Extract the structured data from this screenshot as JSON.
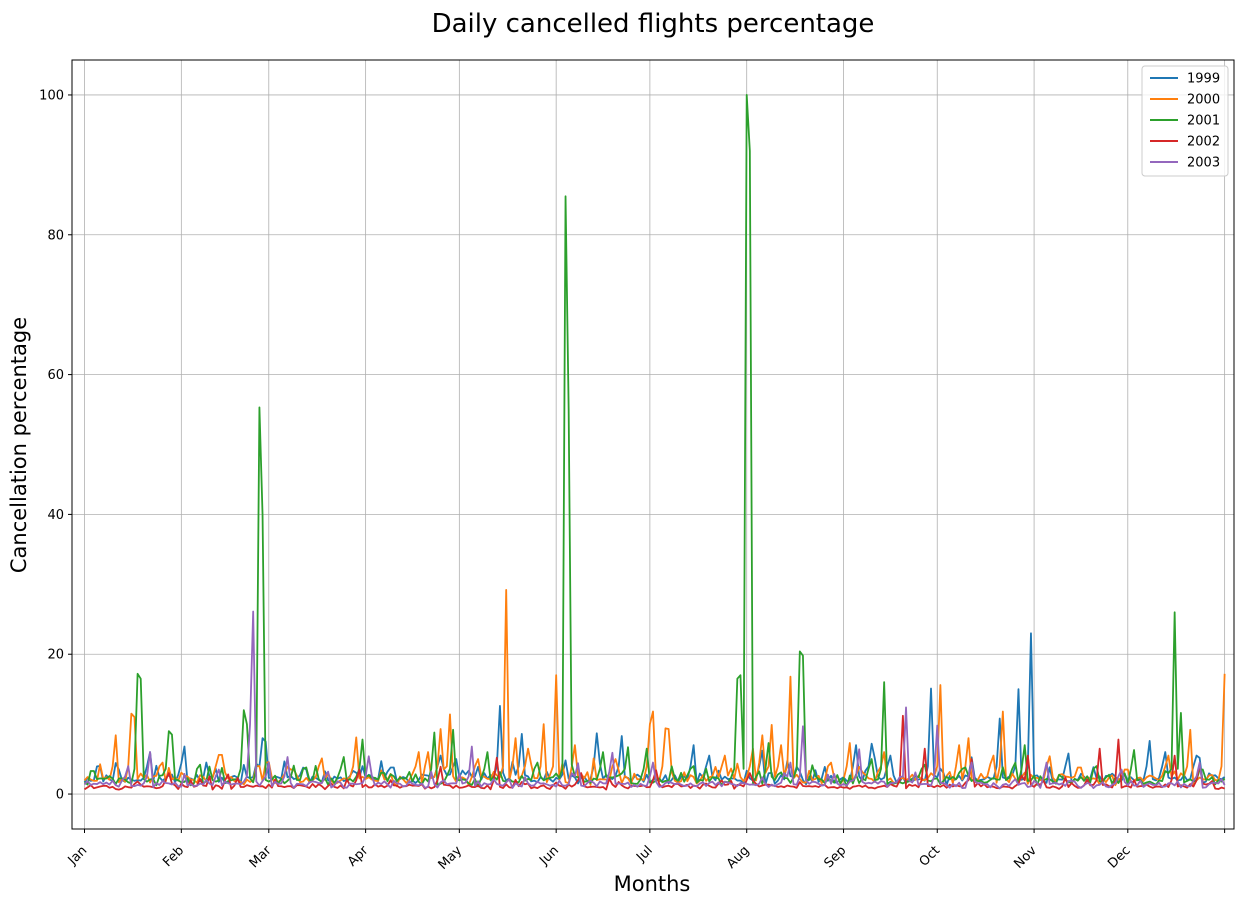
{
  "chart_data": {
    "type": "line",
    "title": "Daily cancelled flights percentage",
    "xlabel": "Months",
    "ylabel": "Cancellation percentage",
    "x_tick_labels": [
      "Jan",
      "Feb",
      "Mar",
      "Apr",
      "May",
      "Jun",
      "Jul",
      "Aug",
      "Sep",
      "Oct",
      "Nov",
      "Dec"
    ],
    "x_tick_days": [
      1,
      32,
      60,
      91,
      121,
      152,
      182,
      213,
      244,
      274,
      305,
      335,
      366
    ],
    "xlim": [
      -3,
      369
    ],
    "ylim": [
      -5,
      105
    ],
    "y_ticks": [
      0,
      20,
      40,
      60,
      80,
      100
    ],
    "grid": true,
    "legend_position": "top-right",
    "series": [
      {
        "name": "1999",
        "color": "#1f77b4",
        "peaks": [
          [
            6,
            4.0
          ],
          [
            12,
            3.5
          ],
          [
            22,
            6.0
          ],
          [
            33,
            6.8
          ],
          [
            58,
            8.0
          ],
          [
            59,
            7.5
          ],
          [
            72,
            3.5
          ],
          [
            100,
            3.8
          ],
          [
            115,
            5.5
          ],
          [
            120,
            5.0
          ],
          [
            134,
            12.6
          ],
          [
            141,
            8.6
          ],
          [
            165,
            8.7
          ],
          [
            173,
            8.3
          ],
          [
            196,
            7.0
          ],
          [
            201,
            5.5
          ],
          [
            218,
            6.2
          ],
          [
            248,
            7.0
          ],
          [
            253,
            7.2
          ],
          [
            259,
            5.5
          ],
          [
            272,
            15.1
          ],
          [
            294,
            10.8
          ],
          [
            300,
            15.0
          ],
          [
            304,
            23.0
          ],
          [
            316,
            5.8
          ],
          [
            342,
            7.6
          ],
          [
            347,
            6.0
          ],
          [
            357,
            5.5
          ]
        ],
        "base": 2.2,
        "seed": 11
      },
      {
        "name": "2000",
        "color": "#ff7f0e",
        "peaks": [
          [
            11,
            8.4
          ],
          [
            16,
            11.5
          ],
          [
            17,
            11.0
          ],
          [
            26,
            4.5
          ],
          [
            44,
            5.6
          ],
          [
            45,
            5.6
          ],
          [
            57,
            4.0
          ],
          [
            68,
            3.5
          ],
          [
            77,
            5.1
          ],
          [
            88,
            8.1
          ],
          [
            108,
            6.0
          ],
          [
            111,
            6.0
          ],
          [
            115,
            9.3
          ],
          [
            118,
            11.4
          ],
          [
            127,
            5.0
          ],
          [
            136,
            29.2
          ],
          [
            139,
            8.0
          ],
          [
            143,
            6.5
          ],
          [
            152,
            17.0
          ],
          [
            148,
            10.0
          ],
          [
            158,
            7.0
          ],
          [
            171,
            5.0
          ],
          [
            182,
            10.0
          ],
          [
            183,
            11.8
          ],
          [
            187,
            9.4
          ],
          [
            188,
            9.3
          ],
          [
            206,
            5.5
          ],
          [
            215,
            6.5
          ],
          [
            218,
            8.4
          ],
          [
            221,
            9.9
          ],
          [
            224,
            7.0
          ],
          [
            227,
            16.8
          ],
          [
            240,
            4.5
          ],
          [
            246,
            7.3
          ],
          [
            257,
            6.0
          ],
          [
            275,
            15.6
          ],
          [
            281,
            7.0
          ],
          [
            284,
            8.0
          ],
          [
            292,
            5.5
          ],
          [
            295,
            11.8
          ],
          [
            310,
            5.4
          ],
          [
            320,
            3.8
          ],
          [
            335,
            3.5
          ],
          [
            348,
            5.5
          ],
          [
            355,
            9.2
          ],
          [
            366,
            17.2
          ]
        ],
        "base": 2.2,
        "seed": 23
      },
      {
        "name": "2001",
        "color": "#2ca02c",
        "peaks": [
          [
            4,
            3.3
          ],
          [
            18,
            17.2
          ],
          [
            19,
            16.5
          ],
          [
            28,
            9.0
          ],
          [
            29,
            8.5
          ],
          [
            38,
            4.2
          ],
          [
            52,
            12.0
          ],
          [
            53,
            10.0
          ],
          [
            57,
            55.3
          ],
          [
            58,
            40.0
          ],
          [
            72,
            3.8
          ],
          [
            84,
            5.3
          ],
          [
            90,
            7.8
          ],
          [
            97,
            3.0
          ],
          [
            113,
            8.8
          ],
          [
            119,
            9.2
          ],
          [
            130,
            6.0
          ],
          [
            146,
            4.5
          ],
          [
            155,
            85.5
          ],
          [
            156,
            55.0
          ],
          [
            167,
            6.0
          ],
          [
            175,
            6.7
          ],
          [
            181,
            6.5
          ],
          [
            196,
            4.0
          ],
          [
            210,
            16.5
          ],
          [
            211,
            17.0
          ],
          [
            213,
            100.0
          ],
          [
            214,
            92.0
          ],
          [
            220,
            7.3
          ],
          [
            230,
            20.4
          ],
          [
            231,
            19.8
          ],
          [
            253,
            5.0
          ],
          [
            257,
            16.0
          ],
          [
            270,
            4.2
          ],
          [
            283,
            3.8
          ],
          [
            299,
            4.5
          ],
          [
            302,
            7.0
          ],
          [
            325,
            4.0
          ],
          [
            337,
            6.3
          ],
          [
            350,
            26.0
          ],
          [
            352,
            11.6
          ],
          [
            359,
            3.5
          ]
        ],
        "base": 2.0,
        "seed": 37
      },
      {
        "name": "2002",
        "color": "#d62728",
        "peaks": [
          [
            28,
            3.0
          ],
          [
            47,
            2.8
          ],
          [
            89,
            3.5
          ],
          [
            115,
            3.9
          ],
          [
            133,
            5.2
          ],
          [
            160,
            3.0
          ],
          [
            184,
            3.4
          ],
          [
            214,
            3.0
          ],
          [
            263,
            11.2
          ],
          [
            270,
            6.5
          ],
          [
            285,
            5.0
          ],
          [
            303,
            5.5
          ],
          [
            326,
            6.5
          ],
          [
            332,
            7.8
          ],
          [
            350,
            5.5
          ],
          [
            358,
            4.2
          ]
        ],
        "base": 1.1,
        "seed": 53
      },
      {
        "name": "2003",
        "color": "#9467bd",
        "peaks": [
          [
            15,
            4.0
          ],
          [
            22,
            6.0
          ],
          [
            44,
            3.5
          ],
          [
            55,
            26.1
          ],
          [
            54,
            10.0
          ],
          [
            60,
            4.5
          ],
          [
            66,
            5.3
          ],
          [
            79,
            3.2
          ],
          [
            92,
            5.4
          ],
          [
            125,
            6.8
          ],
          [
            159,
            4.4
          ],
          [
            170,
            5.9
          ],
          [
            183,
            4.5
          ],
          [
            227,
            4.5
          ],
          [
            231,
            9.7
          ],
          [
            249,
            6.4
          ],
          [
            264,
            12.4
          ],
          [
            274,
            9.8
          ],
          [
            285,
            4.5
          ],
          [
            309,
            4.5
          ],
          [
            333,
            3.5
          ],
          [
            358,
            4.5
          ]
        ],
        "base": 1.4,
        "seed": 71
      }
    ]
  }
}
